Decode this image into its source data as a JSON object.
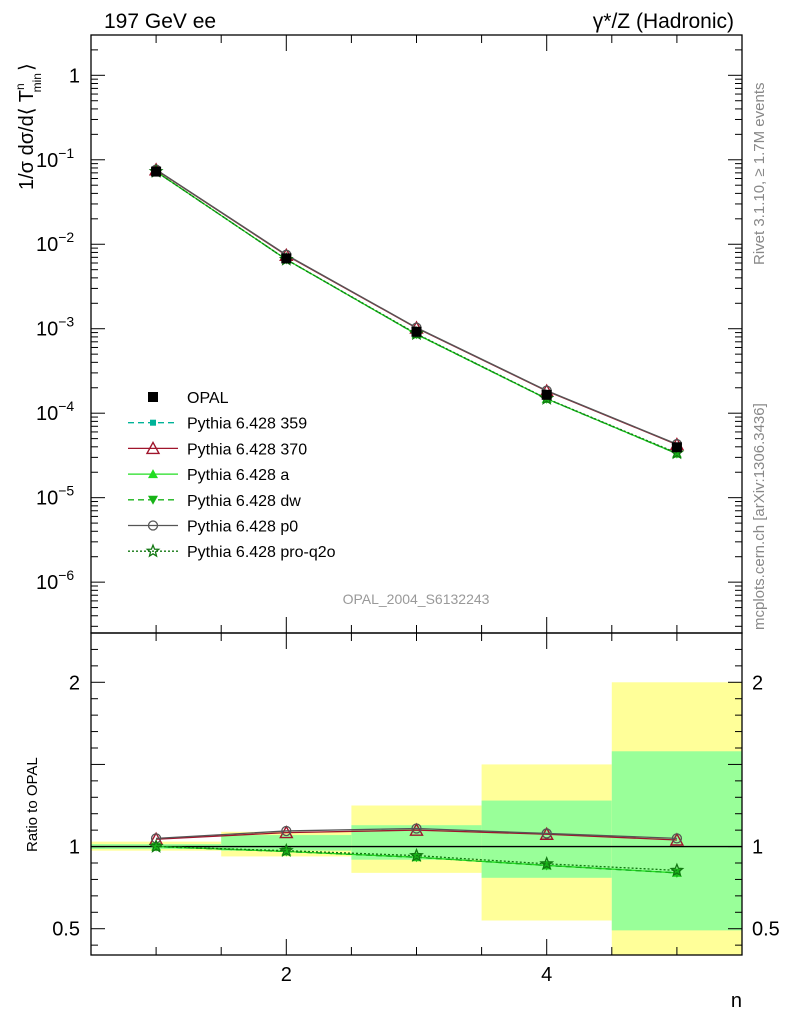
{
  "header": {
    "left_title": "197 GeV ee",
    "right_title": "γ*/Z (Hadronic)"
  },
  "side_labels": {
    "rivet": "Rivet 3.1.10, ≥ 1.7M events",
    "mcplots": "mcplots.cern.ch [arXiv:1306.3436]"
  },
  "analysis_tag": "OPAL_2004_S6132243",
  "chart_data": [
    {
      "type": "line",
      "yscale": "log",
      "ylabel": "1/σ dσ/d⟨ Tⁿmin ⟩",
      "ylabel_main": "1/σ dσ/d⟨ T",
      "ylabel_sup": "n",
      "ylabel_sub": "min",
      "ylabel_close": "⟩",
      "xlim": [
        0.5,
        5.5
      ],
      "ylim": [
        2.5e-07,
        3.0
      ],
      "y_ticks": [
        {
          "value": 1,
          "label": "1"
        },
        {
          "value": 0.1,
          "label": "10",
          "exp": "−1"
        },
        {
          "value": 0.01,
          "label": "10",
          "exp": "−2"
        },
        {
          "value": 0.001,
          "label": "10",
          "exp": "−3"
        },
        {
          "value": 0.0001,
          "label": "10",
          "exp": "−4"
        },
        {
          "value": 1e-05,
          "label": "10",
          "exp": "−5"
        },
        {
          "value": 1e-06,
          "label": "10",
          "exp": "−6"
        }
      ],
      "x": [
        1,
        2,
        3,
        4,
        5
      ],
      "reference": {
        "name": "OPAL",
        "values": [
          0.0725,
          0.0068,
          0.00092,
          0.000165,
          3.95e-05
        ]
      },
      "series": [
        {
          "name": "Pythia 6.428 359",
          "color": "#00b399",
          "dash": "6,4",
          "marker": "square-small",
          "values": [
            0.0725,
            0.0066,
            0.00086,
            0.000148,
            3.32e-05
          ]
        },
        {
          "name": "Pythia 6.428 370",
          "color": "#a0152c",
          "dash": "",
          "marker": "triangle-open",
          "values": [
            0.076,
            0.0074,
            0.00102,
            0.000183,
            4.25e-05
          ]
        },
        {
          "name": "Pythia 6.428 a",
          "color": "#22dd22",
          "dash": "",
          "marker": "triangle-filled",
          "values": [
            0.0725,
            0.0066,
            0.00086,
            0.000148,
            3.32e-05
          ]
        },
        {
          "name": "Pythia 6.428 dw",
          "color": "#18b318",
          "dash": "6,4",
          "marker": "triangle-down-filled",
          "values": [
            0.0725,
            0.0066,
            0.00086,
            0.000148,
            3.32e-05
          ]
        },
        {
          "name": "Pythia 6.428 p0",
          "color": "#555555",
          "dash": "",
          "marker": "circle-open",
          "values": [
            0.0765,
            0.0075,
            0.00103,
            0.000185,
            4.3e-05
          ]
        },
        {
          "name": "Pythia 6.428 pro-q2o",
          "color": "#117711",
          "dash": "2,2",
          "marker": "star-open",
          "values": [
            0.0725,
            0.0066,
            0.00087,
            0.000149,
            3.38e-05
          ]
        }
      ]
    },
    {
      "type": "line",
      "ylabel": "Ratio to OPAL",
      "xlabel": "n",
      "xlim": [
        0.5,
        5.5
      ],
      "ylim": [
        0.34,
        2.3
      ],
      "x_ticks": [
        {
          "value": 2,
          "label": "2"
        },
        {
          "value": 4,
          "label": "4"
        }
      ],
      "y_ticks": [
        {
          "value": 0.5,
          "label": "0.5"
        },
        {
          "value": 1,
          "label": "1"
        },
        {
          "value": 2,
          "label": "2"
        }
      ],
      "x": [
        1,
        2,
        3,
        4,
        5
      ],
      "bands": [
        {
          "x_range": [
            0.5,
            1.5
          ],
          "stat": [
            0.985,
            1.015
          ],
          "total": [
            0.975,
            1.03
          ]
        },
        {
          "x_range": [
            1.5,
            2.5
          ],
          "stat": [
            0.975,
            1.07
          ],
          "total": [
            0.94,
            1.09
          ]
        },
        {
          "x_range": [
            2.5,
            3.5
          ],
          "stat": [
            0.92,
            1.13
          ],
          "total": [
            0.84,
            1.25
          ]
        },
        {
          "x_range": [
            3.5,
            4.5
          ],
          "stat": [
            0.81,
            1.28
          ],
          "total": [
            0.55,
            1.5
          ]
        },
        {
          "x_range": [
            4.5,
            5.5
          ],
          "stat": [
            0.49,
            1.58
          ],
          "total": [
            0.34,
            2.0
          ]
        }
      ],
      "series": [
        {
          "name": "Pythia 6.428 359",
          "values": [
            1.0,
            0.97,
            0.935,
            0.885,
            0.84
          ]
        },
        {
          "name": "Pythia 6.428 370",
          "values": [
            1.045,
            1.085,
            1.1,
            1.075,
            1.04
          ]
        },
        {
          "name": "Pythia 6.428 a",
          "values": [
            1.0,
            0.97,
            0.935,
            0.885,
            0.84
          ]
        },
        {
          "name": "Pythia 6.428 dw",
          "values": [
            1.0,
            0.97,
            0.935,
            0.885,
            0.84
          ]
        },
        {
          "name": "Pythia 6.428 p0",
          "values": [
            1.05,
            1.095,
            1.11,
            1.08,
            1.05
          ]
        },
        {
          "name": "Pythia 6.428 pro-q2o",
          "values": [
            1.0,
            0.975,
            0.945,
            0.895,
            0.855
          ]
        }
      ]
    }
  ]
}
